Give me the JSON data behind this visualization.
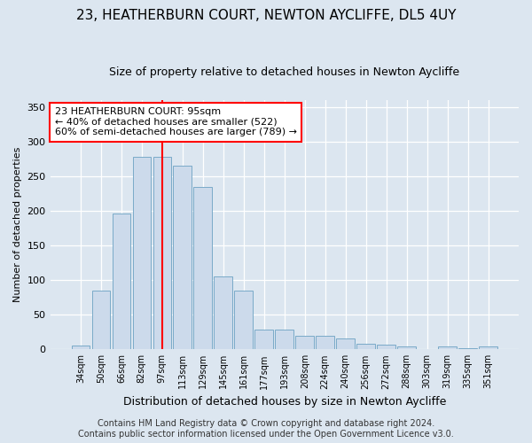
{
  "title": "23, HEATHERBURN COURT, NEWTON AYCLIFFE, DL5 4UY",
  "subtitle": "Size of property relative to detached houses in Newton Aycliffe",
  "xlabel": "Distribution of detached houses by size in Newton Aycliffe",
  "ylabel": "Number of detached properties",
  "bin_labels": [
    "34sqm",
    "50sqm",
    "66sqm",
    "82sqm",
    "97sqm",
    "113sqm",
    "129sqm",
    "145sqm",
    "161sqm",
    "177sqm",
    "193sqm",
    "208sqm",
    "224sqm",
    "240sqm",
    "256sqm",
    "272sqm",
    "288sqm",
    "303sqm",
    "319sqm",
    "335sqm",
    "351sqm"
  ],
  "bar_values": [
    6,
    85,
    196,
    278,
    278,
    265,
    235,
    105,
    85,
    28,
    28,
    20,
    20,
    16,
    8,
    7,
    4,
    0,
    4,
    2,
    4
  ],
  "bar_color": "#ccdaeb",
  "bar_edge_color": "#7aaac8",
  "vline_x": 4,
  "vline_color": "red",
  "annotation_text": "23 HEATHERBURN COURT: 95sqm\n← 40% of detached houses are smaller (522)\n60% of semi-detached houses are larger (789) →",
  "annotation_box_color": "white",
  "annotation_box_edge_color": "red",
  "ylim": [
    0,
    360
  ],
  "yticks": [
    0,
    50,
    100,
    150,
    200,
    250,
    300,
    350
  ],
  "footer1": "Contains HM Land Registry data © Crown copyright and database right 2024.",
  "footer2": "Contains public sector information licensed under the Open Government Licence v3.0.",
  "bg_color": "#dce6f0",
  "title_fontsize": 11,
  "subtitle_fontsize": 9,
  "ylabel_fontsize": 8,
  "xlabel_fontsize": 9,
  "tick_fontsize": 8,
  "xtick_fontsize": 7,
  "annotation_fontsize": 8,
  "footer_fontsize": 7
}
